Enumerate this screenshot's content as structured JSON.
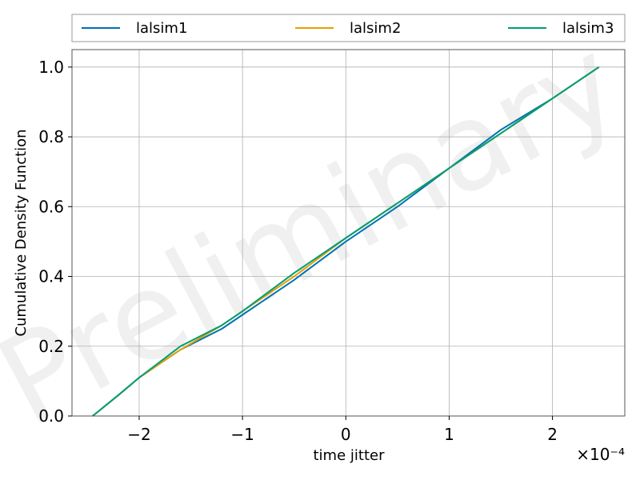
{
  "chart_data": {
    "type": "line",
    "title": "",
    "xlabel": "time jitter",
    "ylabel": "Cumulative Density Function",
    "x_scale_label": "×10⁻⁴",
    "xlim": [
      -2.65,
      2.7
    ],
    "ylim": [
      0.0,
      1.05
    ],
    "xticks": [
      -2,
      -1,
      0,
      1,
      2
    ],
    "xtick_labels": [
      "−2",
      "−1",
      "0",
      "1",
      "2"
    ],
    "yticks": [
      0.0,
      0.2,
      0.4,
      0.6,
      0.8,
      1.0
    ],
    "ytick_labels": [
      "0.0",
      "0.2",
      "0.4",
      "0.6",
      "0.8",
      "1.0"
    ],
    "grid": true,
    "legend_position": "top-above",
    "watermark": "Preliminary",
    "series": [
      {
        "name": "lalsim1",
        "color": "#0072B2",
        "x": [
          -2.45,
          -2.2,
          -2.0,
          -1.6,
          -1.2,
          -1.0,
          -0.5,
          0.0,
          0.5,
          1.0,
          1.5,
          2.0,
          2.45
        ],
        "y": [
          0.0,
          0.06,
          0.11,
          0.19,
          0.25,
          0.29,
          0.39,
          0.5,
          0.6,
          0.71,
          0.82,
          0.91,
          1.0
        ]
      },
      {
        "name": "lalsim2",
        "color": "#E69F00",
        "x": [
          -2.45,
          -2.2,
          -2.0,
          -1.6,
          -1.2,
          -1.0,
          -0.5,
          0.0,
          0.5,
          1.0,
          1.5,
          2.0,
          2.45
        ],
        "y": [
          0.0,
          0.06,
          0.11,
          0.19,
          0.26,
          0.3,
          0.4,
          0.51,
          0.61,
          0.71,
          0.81,
          0.91,
          1.0
        ]
      },
      {
        "name": "lalsim3",
        "color": "#009E73",
        "x": [
          -2.45,
          -2.2,
          -2.0,
          -1.6,
          -1.2,
          -1.0,
          -0.5,
          0.0,
          0.5,
          1.0,
          1.5,
          2.0,
          2.45
        ],
        "y": [
          0.0,
          0.06,
          0.11,
          0.2,
          0.26,
          0.3,
          0.41,
          0.51,
          0.61,
          0.71,
          0.81,
          0.91,
          1.0
        ]
      }
    ]
  }
}
